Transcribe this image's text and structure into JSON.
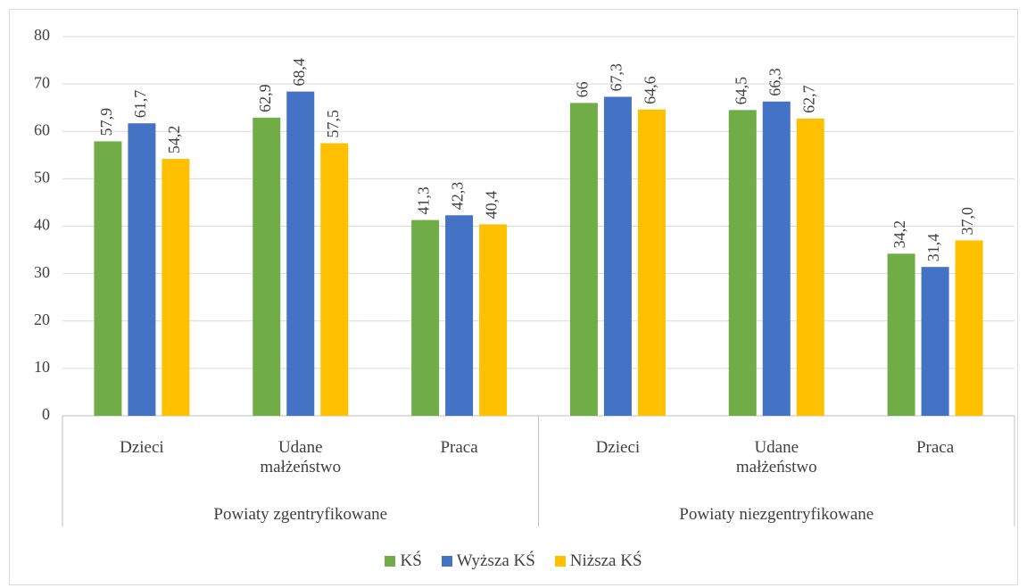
{
  "chart_data": {
    "type": "bar",
    "groups": [
      "Powiaty zgentryfikowane",
      "Powiaty niezgentryfikowane"
    ],
    "categories": [
      "Dzieci",
      "Udane małżeństwo",
      "Praca",
      "Dzieci",
      "Udane małżeństwo",
      "Praca"
    ],
    "series": [
      {
        "name": "KŚ",
        "color": "#70ad47",
        "values": [
          57.9,
          62.9,
          41.3,
          66,
          64.5,
          34.2
        ],
        "value_labels": [
          "57,9",
          "62,9",
          "41,3",
          "66",
          "64,5",
          "34,2"
        ]
      },
      {
        "name": "Wyższa KŚ",
        "color": "#4472c4",
        "values": [
          61.7,
          68.4,
          42.3,
          67.3,
          66.3,
          31.4
        ],
        "value_labels": [
          "61,7",
          "68,4",
          "42,3",
          "67,3",
          "66,3",
          "31,4"
        ]
      },
      {
        "name": "Niższa KŚ",
        "color": "#ffc000",
        "values": [
          54.2,
          57.5,
          40.4,
          64.6,
          62.7,
          37.0
        ],
        "value_labels": [
          "54,2",
          "57,5",
          "40,4",
          "64,6",
          "62,7",
          "37,0"
        ]
      }
    ],
    "ylim": [
      0,
      80
    ],
    "yticks": [
      0,
      10,
      20,
      30,
      40,
      50,
      60,
      70,
      80
    ],
    "grid": true,
    "legend": "bottom"
  }
}
